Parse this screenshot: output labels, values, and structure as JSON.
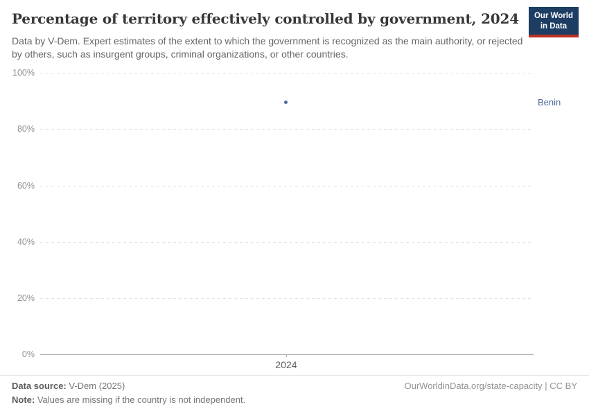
{
  "header": {
    "title": "Percentage of territory effectively controlled by government, 2024",
    "subtitle": "Data by V-Dem. Expert estimates of the extent to which the government is recognized as the main authority, or rejected by others, such as insurgent groups, criminal organizations, or other countries.",
    "logo": {
      "line1": "Our World",
      "line2": "in Data",
      "background_color": "#1d3d63",
      "accent_color": "#bf3022"
    }
  },
  "chart_data": {
    "type": "scatter",
    "title": "Percentage of territory effectively controlled by government, 2024",
    "x": [
      2024
    ],
    "series": [
      {
        "name": "Benin",
        "values": [
          89.7
        ]
      }
    ],
    "xlabel": "",
    "ylabel": "",
    "ylim": [
      0,
      100
    ],
    "yticks": [
      "100%",
      "80%",
      "60%",
      "40%",
      "20%",
      "0%"
    ],
    "xticks": [
      "2024"
    ],
    "grid": true,
    "legend_position": "right-of-point",
    "point_color": "#4c6a9c",
    "entity_label_color": "#4c6a9c"
  },
  "footer": {
    "datasource_label": "Data source:",
    "datasource_value": " V-Dem (2025)",
    "note_label": "Note:",
    "note_value": " Values are missing if the country is not independent.",
    "link": "OurWorldinData.org/state-capacity | CC BY"
  }
}
